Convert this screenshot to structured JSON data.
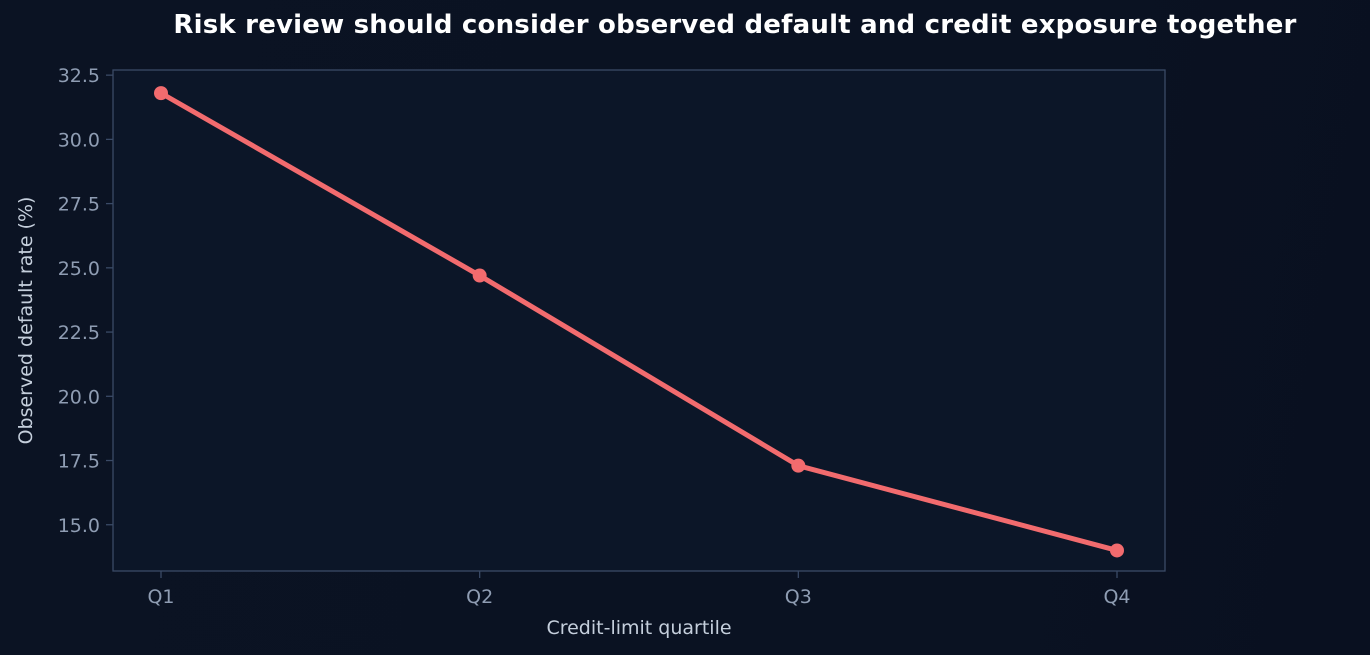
{
  "chart_data": {
    "type": "line",
    "title": "Risk review should consider observed default and credit exposure together",
    "xlabel": "Credit-limit quartile",
    "ylabel": "Observed default rate (%)",
    "categories": [
      "Q1",
      "Q2",
      "Q3",
      "Q4"
    ],
    "series": [
      {
        "values": [
          31.8,
          24.7,
          17.3,
          14.0
        ],
        "color": "#f26b6e"
      }
    ],
    "ylim": [
      13.2,
      32.7
    ],
    "yticks": [
      15.0,
      17.5,
      20.0,
      22.5,
      25.0,
      27.5,
      30.0,
      32.5
    ],
    "ytick_labels": [
      "15.0",
      "17.5",
      "20.0",
      "22.5",
      "25.0",
      "27.5",
      "30.0",
      "32.5"
    ],
    "grid": false,
    "colors": {
      "background": "#0b1323",
      "plot_background": "#0c1628",
      "axis": "#3a4a66",
      "tick_text": "#8f9db3",
      "title_text": "#ffffff",
      "axis_title_text": "#c5cfdc"
    }
  }
}
